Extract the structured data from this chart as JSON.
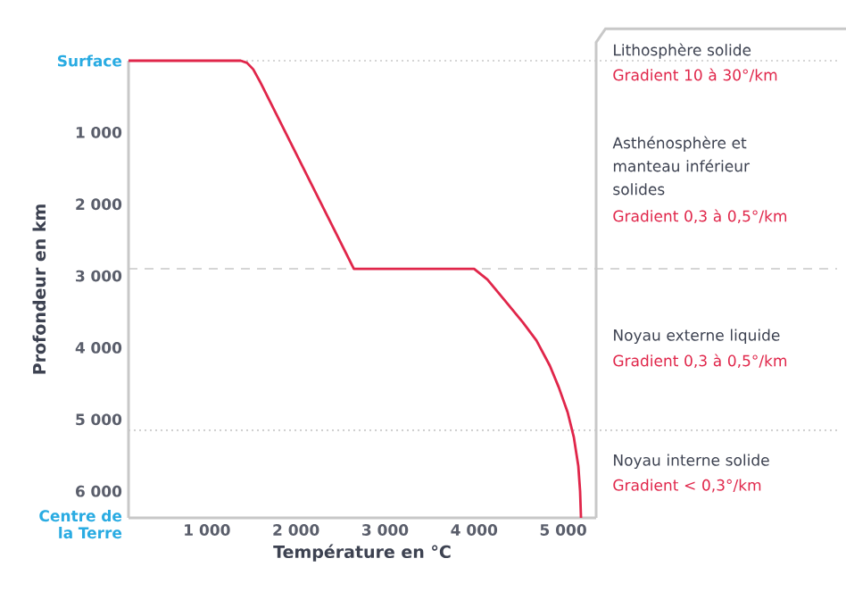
{
  "chart_data": {
    "type": "line",
    "xlabel": "Température en °C",
    "ylabel": "Profondeur en km",
    "x": [
      120,
      1380,
      1450,
      1520,
      1600,
      2650,
      4000,
      4150,
      4350,
      4550,
      4700,
      4850,
      4950,
      5050,
      5120,
      5170,
      5190,
      5200
    ],
    "series": [
      {
        "color": "#e0264a",
        "values": [
          0,
          0,
          30,
          120,
          300,
          2900,
          2900,
          3050,
          3350,
          3650,
          3900,
          4250,
          4550,
          4900,
          5250,
          5650,
          6000,
          6371
        ]
      }
    ],
    "xlim": [
      120,
      5370
    ],
    "ylim": [
      6371,
      0
    ],
    "xticks": [
      {
        "value": 1000,
        "label": "1 000"
      },
      {
        "value": 2000,
        "label": "2 000"
      },
      {
        "value": 3000,
        "label": "3 000"
      },
      {
        "value": 4000,
        "label": "4 000"
      },
      {
        "value": 5000,
        "label": "5 000"
      }
    ],
    "yticks": [
      {
        "value": 0,
        "label": "Surface"
      },
      {
        "value": 1000,
        "label": "1 000"
      },
      {
        "value": 2000,
        "label": "2 000"
      },
      {
        "value": 3000,
        "label": "3 000"
      },
      {
        "value": 4000,
        "label": "4 000"
      },
      {
        "value": 5000,
        "label": "5 000"
      },
      {
        "value": 6000,
        "label": "6 000"
      },
      {
        "value": 6371,
        "label": "Centre de la Terre"
      }
    ],
    "ref_lines": [
      {
        "axis": "y",
        "value": 0,
        "line_style": "dotted",
        "color": "#c8c8c8"
      },
      {
        "axis": "y",
        "value": 2900,
        "line_style": "dashed",
        "color": "#c8c8c8"
      },
      {
        "axis": "y",
        "value": 5150,
        "line_style": "dotted",
        "color": "#c8c8c8"
      }
    ],
    "annotations": [
      "Lithosphère solide",
      "Gradient 10 à 30°/km",
      "Asthénosphère et manteau inférieur solides",
      "Gradient 0,3 à 0,5°/km",
      "Noyau externe liquide",
      "Gradient 0,3 à 0,5°/km",
      "Noyau interne solide",
      "Gradient < 0,3°/km"
    ],
    "marker": "none",
    "line_style": "solid",
    "grid": false
  }
}
